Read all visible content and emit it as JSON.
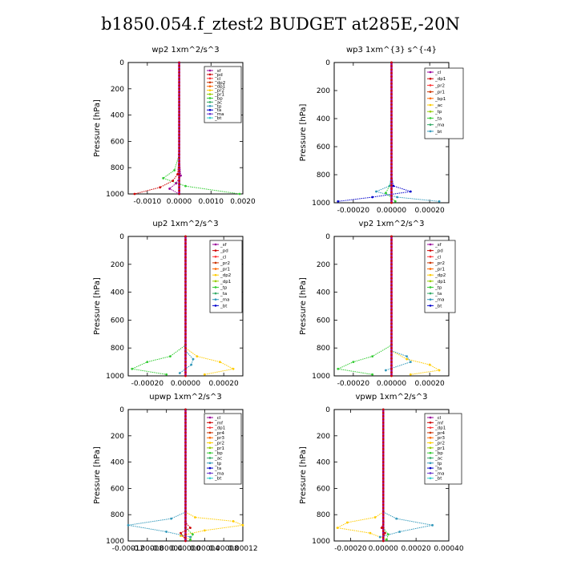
{
  "title": "b1850.054.f_ztest2  BUDGET at285E,-20N",
  "chart_data": [
    {
      "type": "line",
      "title": "wp2  1xm^2/s^3",
      "ylabel": "Pressure [hPa]",
      "xlim": [
        -0.0016,
        0.002
      ],
      "ylim": [
        1000,
        0
      ],
      "xticks": [
        "-0.0010",
        "0.0000",
        "0.0010",
        "0.0020"
      ],
      "xtick_values": [
        -0.001,
        0.0,
        0.001,
        0.002
      ],
      "yticks": [
        "0",
        "200",
        "400",
        "600",
        "800",
        "1000"
      ],
      "ytick_values": [
        0,
        200,
        400,
        600,
        800,
        1000
      ],
      "legend": [
        "_sf",
        "_pd",
        "_cl",
        "_dp2",
        "_dp1",
        "_pr2",
        "_pr1",
        "_bp",
        "_ac",
        "_tp",
        "_ta",
        "_ma",
        "_bt"
      ],
      "series": [
        {
          "name": "_ac",
          "color": "#33cc33",
          "p": [
            0,
            700,
            820,
            880,
            940,
            1000
          ],
          "x": [
            0,
            0,
            -0.00015,
            -0.0005,
            0.0002,
            0.0019
          ]
        },
        {
          "name": "_dp1",
          "color": "#cc0000",
          "p": [
            0,
            700,
            850,
            900,
            950,
            1000
          ],
          "x": [
            0,
            0,
            -5e-05,
            -0.0002,
            -0.0006,
            -0.0014
          ]
        },
        {
          "name": "_pd",
          "color": "#990099",
          "p": [
            0,
            700,
            860,
            920,
            960,
            1000
          ],
          "x": [
            0,
            0,
            5e-05,
            -0.0001,
            -0.0003,
            0.0
          ]
        },
        {
          "name": "_bt",
          "color": "#3333cc",
          "p": [
            0,
            1000
          ],
          "x": [
            0,
            0
          ]
        }
      ]
    },
    {
      "type": "line",
      "title": "wp3  1xm^{3} s^{-4}",
      "ylabel": "Pressure [hPa]",
      "xlim": [
        -0.0003,
        0.0003
      ],
      "ylim": [
        1000,
        0
      ],
      "xticks": [
        "-0.00020",
        "0.00000",
        "0.00020"
      ],
      "xtick_values": [
        -0.0002,
        0.0,
        0.0002
      ],
      "yticks": [
        "0",
        "200",
        "400",
        "600",
        "800",
        "1000"
      ],
      "ytick_values": [
        0,
        200,
        400,
        600,
        800,
        1000
      ],
      "legend": [
        "_cl",
        "_dp1",
        "_pr2",
        "_pr1",
        "_bp1",
        "_ac",
        "_tp",
        "_ta",
        "_ma",
        "_bt"
      ],
      "series": [
        {
          "name": "_ta",
          "color": "#0000cc",
          "p": [
            0,
            800,
            880,
            920,
            960,
            990
          ],
          "x": [
            0,
            0,
            1e-05,
            0.0001,
            -0.0001,
            -0.00028
          ]
        },
        {
          "name": "_tp",
          "color": "#3399bb",
          "p": [
            0,
            800,
            880,
            920,
            960,
            990
          ],
          "x": [
            0,
            0,
            -1e-05,
            -8e-05,
            3e-05,
            0.00025
          ]
        },
        {
          "name": "_ac",
          "color": "#33cc33",
          "p": [
            0,
            850,
            930,
            990
          ],
          "x": [
            0,
            0,
            -3e-05,
            2e-05
          ]
        },
        {
          "name": "_dp1",
          "color": "#cc0000",
          "p": [
            0,
            1000
          ],
          "x": [
            0,
            0
          ]
        }
      ]
    },
    {
      "type": "line",
      "title": "up2  1xm^2/s^3",
      "ylabel": "Pressure [hPa]",
      "xlim": [
        -0.0003,
        0.0003
      ],
      "ylim": [
        1000,
        0
      ],
      "xticks": [
        "-0.00020",
        "0.00000",
        "0.00020"
      ],
      "xtick_values": [
        -0.0002,
        0.0,
        0.0002
      ],
      "yticks": [
        "0",
        "200",
        "400",
        "600",
        "800",
        "1000"
      ],
      "ytick_values": [
        0,
        200,
        400,
        600,
        800,
        1000
      ],
      "legend": [
        "_sf",
        "_pd",
        "_cl",
        "_pr2",
        "_pr1",
        "_dp2",
        "_dp1",
        "_tp",
        "_ta",
        "_ma",
        "_bt"
      ],
      "series": [
        {
          "name": "_dp2",
          "color": "#33cc33",
          "p": [
            0,
            780,
            860,
            900,
            950,
            990
          ],
          "x": [
            0,
            0,
            -8e-05,
            -0.0002,
            -0.00028,
            -0.0001
          ]
        },
        {
          "name": "_pr2",
          "color": "#ffcc00",
          "p": [
            0,
            800,
            860,
            900,
            950,
            990
          ],
          "x": [
            0,
            0,
            6e-05,
            0.00018,
            0.00025,
            0.0001
          ]
        },
        {
          "name": "_tp",
          "color": "#3399bb",
          "p": [
            0,
            820,
            880,
            920,
            980
          ],
          "x": [
            0,
            0,
            4e-05,
            3e-05,
            -3e-05
          ]
        },
        {
          "name": "_sf",
          "color": "#cc0000",
          "p": [
            0,
            1000
          ],
          "x": [
            0,
            0
          ]
        }
      ]
    },
    {
      "type": "line",
      "title": "vp2  1xm^2/s^3",
      "ylabel": "Pressure [hPa]",
      "xlim": [
        -0.0003,
        0.0003
      ],
      "ylim": [
        1000,
        0
      ],
      "xticks": [
        "-0.00020",
        "0.00000",
        "0.00020"
      ],
      "xtick_values": [
        -0.0002,
        0.0,
        0.0002
      ],
      "yticks": [
        "0",
        "200",
        "400",
        "600",
        "800",
        "1000"
      ],
      "ytick_values": [
        0,
        200,
        400,
        600,
        800,
        1000
      ],
      "legend": [
        "_sf",
        "_pd",
        "_cl",
        "_pr2",
        "_pr1",
        "_dp2",
        "_dp1",
        "_tp",
        "_ta",
        "_ma",
        "_bt"
      ],
      "series": [
        {
          "name": "_dp2",
          "color": "#33cc33",
          "p": [
            0,
            780,
            860,
            900,
            950,
            990
          ],
          "x": [
            0,
            0,
            -0.0001,
            -0.0002,
            -0.00028,
            -0.0001
          ]
        },
        {
          "name": "_pr2",
          "color": "#ffcc00",
          "p": [
            0,
            820,
            880,
            920,
            960,
            990
          ],
          "x": [
            0,
            0,
            8e-05,
            0.0002,
            0.00025,
            0.0001
          ]
        },
        {
          "name": "_tp",
          "color": "#3399bb",
          "p": [
            0,
            820,
            860,
            900,
            960
          ],
          "x": [
            0,
            0,
            8e-05,
            0.0001,
            -3e-05
          ]
        },
        {
          "name": "_sf",
          "color": "#cc0000",
          "p": [
            0,
            1000
          ],
          "x": [
            0,
            0
          ]
        }
      ]
    },
    {
      "type": "line",
      "title": "upwp  1xm^2/s^3",
      "ylabel": "Pressure [hPa]",
      "xlim": [
        -0.00012,
        0.00012
      ],
      "ylim": [
        1000,
        0
      ],
      "xticks": [
        "-0.00012",
        "-0.00008",
        "-0.00004",
        "0.00000",
        "0.00004",
        "0.00008",
        "0.00012"
      ],
      "xtick_values": [
        -0.00012,
        -8e-05,
        -4e-05,
        0.0,
        4e-05,
        8e-05,
        0.00012
      ],
      "yticks": [
        "0",
        "200",
        "400",
        "600",
        "800",
        "1000"
      ],
      "ytick_values": [
        0,
        200,
        400,
        600,
        800,
        1000
      ],
      "legend": [
        "_cl",
        "_mf",
        "_dp1",
        "_pr4",
        "_pr3",
        "_pr2",
        "_pr1",
        "_bp",
        "_ac",
        "_tp",
        "_ta",
        "_ma",
        "_bt"
      ],
      "series": [
        {
          "name": "_pr1",
          "color": "#ffcc00",
          "p": [
            0,
            780,
            820,
            850,
            880,
            920,
            960,
            990
          ],
          "x": [
            0,
            0,
            2e-05,
            0.0001,
            0.00012,
            4e-05,
            -1e-05,
            1e-05
          ]
        },
        {
          "name": "_tp",
          "color": "#3399bb",
          "p": [
            0,
            780,
            830,
            880,
            930,
            970
          ],
          "x": [
            0,
            0,
            -3e-05,
            -0.00012,
            -4e-05,
            1e-05
          ]
        },
        {
          "name": "_pr2",
          "color": "#33cc33",
          "p": [
            0,
            900,
            950,
            990
          ],
          "x": [
            0,
            0,
            1.5e-05,
            1e-05
          ]
        },
        {
          "name": "_dp1",
          "color": "#cc0000",
          "p": [
            0,
            860,
            900,
            940,
            990
          ],
          "x": [
            0,
            0,
            1e-05,
            -1e-05,
            0.0
          ]
        },
        {
          "name": "_mf",
          "color": "#990099",
          "p": [
            0,
            1000
          ],
          "x": [
            0,
            0
          ]
        }
      ]
    },
    {
      "type": "line",
      "title": "vpwp  1xm^2/s^3",
      "ylabel": "Pressure [hPa]",
      "xlim": [
        -0.0003,
        0.0004
      ],
      "ylim": [
        1000,
        0
      ],
      "xticks": [
        "-0.00020",
        "0.00000",
        "0.00020",
        "0.00040"
      ],
      "xtick_values": [
        -0.0002,
        0.0,
        0.0002,
        0.0004
      ],
      "yticks": [
        "0",
        "200",
        "400",
        "600",
        "800",
        "1000"
      ],
      "ytick_values": [
        0,
        200,
        400,
        600,
        800,
        1000
      ],
      "legend": [
        "_cl",
        "_mf",
        "_dp1",
        "_pr4",
        "_pr3",
        "_pr2",
        "_pr1",
        "_bp",
        "_ac",
        "_tp",
        "_ta",
        "_ma",
        "_bt"
      ],
      "series": [
        {
          "name": "_pr1",
          "color": "#ffcc00",
          "p": [
            0,
            780,
            820,
            860,
            900,
            940,
            990
          ],
          "x": [
            0,
            0,
            -5e-05,
            -0.00022,
            -0.00028,
            -8e-05,
            2e-05
          ]
        },
        {
          "name": "_tp",
          "color": "#3399bb",
          "p": [
            0,
            780,
            830,
            880,
            930,
            970
          ],
          "x": [
            0,
            0,
            8e-05,
            0.0003,
            0.0001,
            -2e-05
          ]
        },
        {
          "name": "_pr2",
          "color": "#33cc33",
          "p": [
            0,
            900,
            950,
            990
          ],
          "x": [
            0,
            0,
            3e-05,
            2e-05
          ]
        },
        {
          "name": "_dp1",
          "color": "#cc0000",
          "p": [
            0,
            860,
            900,
            940,
            990
          ],
          "x": [
            0,
            0,
            -1e-05,
            1e-05,
            0.0
          ]
        },
        {
          "name": "_mf",
          "color": "#990099",
          "p": [
            0,
            1000
          ],
          "x": [
            0,
            0
          ]
        }
      ]
    }
  ]
}
